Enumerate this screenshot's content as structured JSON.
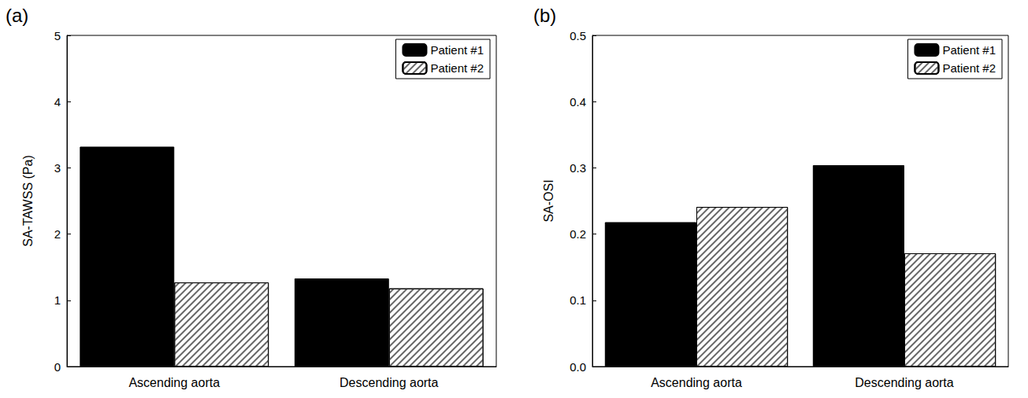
{
  "chart_data": [
    {
      "type": "bar",
      "title": "(a)",
      "ylabel": "SA-TAWSS (Pa)",
      "categories": [
        "Ascending aorta",
        "Descending aorta"
      ],
      "series": [
        {
          "name": "Patient #1",
          "color": "#000000",
          "values": [
            3.32,
            1.33
          ]
        },
        {
          "name": "Patient #2",
          "color": "#ffffff",
          "values": [
            1.27,
            1.18
          ]
        }
      ],
      "ylim": [
        0,
        5
      ],
      "yticks": [
        0,
        1,
        2,
        3,
        4,
        5
      ],
      "grid": false,
      "legend": "upper right"
    },
    {
      "type": "bar",
      "title": "(b)",
      "ylabel": "SA-OSI",
      "categories": [
        "Ascending aorta",
        "Descending aorta"
      ],
      "series": [
        {
          "name": "Patient #1",
          "color": "#000000",
          "values": [
            0.218,
            0.304
          ]
        },
        {
          "name": "Patient #2",
          "color": "#ffffff",
          "values": [
            0.241,
            0.171
          ]
        }
      ],
      "ylim": [
        0,
        0.5
      ],
      "yticks": [
        {
          "value": 0,
          "label": "0.0"
        },
        0.1,
        0.2,
        0.3,
        0.4,
        0.5
      ],
      "grid": false,
      "legend": "upper right"
    }
  ]
}
